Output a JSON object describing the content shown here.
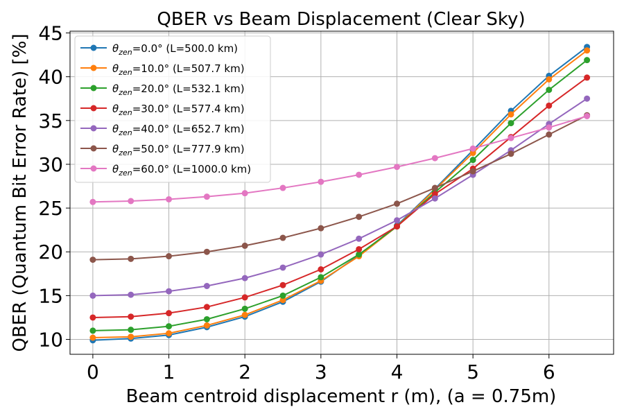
{
  "chart_data": {
    "type": "line",
    "title": "QBER vs Beam Displacement  (Clear Sky)",
    "xlabel": "Beam centroid displacement r (m), (a = 0.75m)",
    "ylabel": "QBER (Quantum Bit Error Rate) [%]",
    "xlim": [
      -0.3,
      6.85
    ],
    "ylim": [
      8.3,
      45.2
    ],
    "xticks": [
      0,
      1,
      2,
      3,
      4,
      5,
      6
    ],
    "yticks": [
      10,
      15,
      20,
      25,
      30,
      35,
      40,
      45
    ],
    "grid": true,
    "legend_position": "upper-left",
    "x": [
      0,
      0.5,
      1,
      1.5,
      2,
      2.5,
      3,
      3.5,
      4,
      4.5,
      5,
      5.5,
      6,
      6.5
    ],
    "series": [
      {
        "name": "θzen=0.0° (L=500.0 km)",
        "theta": "0.0°",
        "rest": " (L=500.0 km)",
        "color": "#1f77b4",
        "values": [
          9.9,
          10.1,
          10.5,
          11.4,
          12.6,
          14.3,
          16.6,
          19.6,
          23.0,
          27.2,
          31.6,
          36.1,
          40.1,
          43.4
        ]
      },
      {
        "name": "θzen=10.0° (L=507.7 km)",
        "theta": "10.0°",
        "rest": " (L=507.7 km)",
        "color": "#ff7f0e",
        "values": [
          10.2,
          10.3,
          10.7,
          11.6,
          12.8,
          14.5,
          16.7,
          19.5,
          22.9,
          27.1,
          31.3,
          35.7,
          39.7,
          43.0
        ]
      },
      {
        "name": "θzen=20.0° (L=532.1 km)",
        "theta": "20.0°",
        "rest": " (L=532.1 km)",
        "color": "#2ca02c",
        "values": [
          11.0,
          11.1,
          11.5,
          12.3,
          13.5,
          15.0,
          17.1,
          19.7,
          22.9,
          26.8,
          30.5,
          34.7,
          38.5,
          41.9
        ]
      },
      {
        "name": "θzen=30.0° (L=577.4 km)",
        "theta": "30.0°",
        "rest": " (L=577.4 km)",
        "color": "#d62728",
        "values": [
          12.5,
          12.6,
          13.0,
          13.7,
          14.8,
          16.2,
          18.0,
          20.3,
          22.9,
          26.6,
          29.5,
          33.1,
          36.7,
          39.9
        ]
      },
      {
        "name": "θzen=40.0° (L=652.7 km)",
        "theta": "40.0°",
        "rest": " (L=652.7 km)",
        "color": "#9467bd",
        "values": [
          15.0,
          15.1,
          15.5,
          16.1,
          17.0,
          18.2,
          19.7,
          21.5,
          23.6,
          26.1,
          28.8,
          31.6,
          34.6,
          37.5
        ]
      },
      {
        "name": "θzen=50.0° (L=777.9 km)",
        "theta": "50.0°",
        "rest": " (L=777.9 km)",
        "color": "#8c564b",
        "values": [
          19.1,
          19.2,
          19.5,
          20.0,
          20.7,
          21.6,
          22.7,
          24.0,
          25.5,
          27.3,
          29.2,
          31.2,
          33.4,
          35.6
        ]
      },
      {
        "name": "θzen=60.0° (L=1000.0 km)",
        "theta": "60.0°",
        "rest": " (L=1000.0 km)",
        "color": "#e377c2",
        "values": [
          25.7,
          25.8,
          26.0,
          26.3,
          26.7,
          27.3,
          28.0,
          28.8,
          29.7,
          30.7,
          31.8,
          33.0,
          34.2,
          35.5
        ]
      }
    ]
  }
}
